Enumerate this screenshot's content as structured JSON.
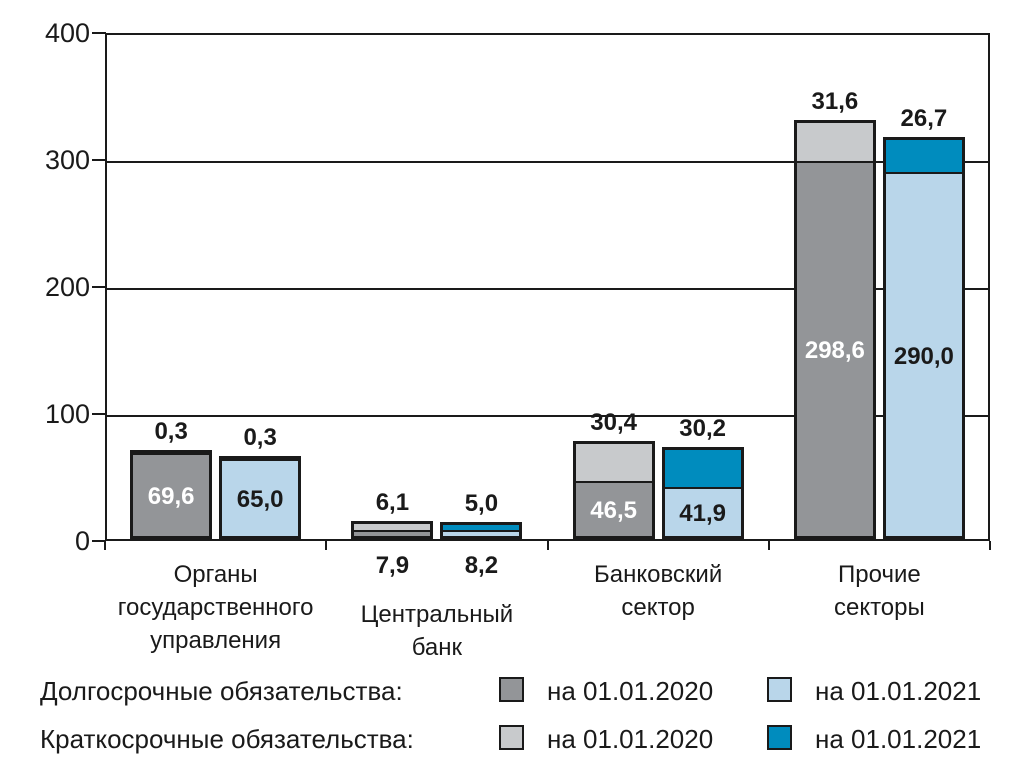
{
  "chart_data": {
    "type": "bar",
    "stacked": true,
    "grid": true,
    "legend_position": "bottom",
    "title": "",
    "xlabel": "",
    "ylabel": "",
    "ylim": [
      0,
      400
    ],
    "yticks": [
      0,
      100,
      200,
      300,
      400
    ],
    "ytick_labels": [
      "0",
      "100",
      "200",
      "300",
      "400"
    ],
    "categories": [
      {
        "name": "Органы государственного управления",
        "label_lines": [
          "Органы",
          "государственного",
          "управления"
        ],
        "long_label_below_axis": false
      },
      {
        "name": "Центральный банк",
        "label_lines": [
          "Центральный",
          "банк"
        ],
        "long_label_below_axis": true
      },
      {
        "name": "Банковский сектор",
        "label_lines": [
          "Банковский",
          "сектор"
        ],
        "long_label_below_axis": false
      },
      {
        "name": "Прочие секторы",
        "label_lines": [
          "Прочие",
          "секторы"
        ],
        "long_label_below_axis": false
      }
    ],
    "series": [
      {
        "name": "Долгосрочные обязательства на 01.01.2020",
        "term": "long",
        "date": "на 01.01.2020",
        "color_key": "dark_gray",
        "label_color": "#ffffff",
        "values": [
          69.6,
          7.9,
          46.5,
          298.6
        ],
        "labels": [
          "69,6",
          "7,9",
          "46,5",
          "298,6"
        ]
      },
      {
        "name": "Краткосрочные обязательства на 01.01.2020",
        "term": "short",
        "date": "на 01.01.2020",
        "color_key": "light_gray",
        "label_color": "#1a1a1a",
        "values": [
          0.3,
          6.1,
          30.4,
          31.6
        ],
        "labels": [
          "0,3",
          "6,1",
          "30,4",
          "31,6"
        ]
      },
      {
        "name": "Долгосрочные обязательства на 01.01.2021",
        "term": "long",
        "date": "на 01.01.2021",
        "color_key": "light_blue",
        "label_color": "#1a1a1a",
        "values": [
          65.0,
          8.2,
          41.9,
          290.0
        ],
        "labels": [
          "65,0",
          "8,2",
          "41,9",
          "290,0"
        ]
      },
      {
        "name": "Краткосрочные обязательства на 01.01.2021",
        "term": "short",
        "date": "на 01.01.2021",
        "color_key": "teal_blue",
        "label_color": "#1a1a1a",
        "values": [
          0.3,
          5.0,
          30.2,
          26.7
        ],
        "labels": [
          "0,3",
          "5,0",
          "30,2",
          "26,7"
        ]
      }
    ],
    "colors": {
      "dark_gray": "#939598",
      "light_gray": "#C8CACC",
      "light_blue": "#B9D6EA",
      "teal_blue": "#008CBE",
      "line": "#1a1a1a",
      "text": "#1a1a1a"
    },
    "legend": {
      "rows": [
        {
          "label": "Долгосрочные обязательства:",
          "items": [
            {
              "color_key": "dark_gray",
              "text": "на 01.01.2020"
            },
            {
              "color_key": "light_blue",
              "text": "на 01.01.2021"
            }
          ]
        },
        {
          "label": "Краткосрочные обязательства:",
          "items": [
            {
              "color_key": "light_gray",
              "text": "на 01.01.2020"
            },
            {
              "color_key": "teal_blue",
              "text": "на 01.01.2021"
            }
          ]
        }
      ]
    }
  }
}
